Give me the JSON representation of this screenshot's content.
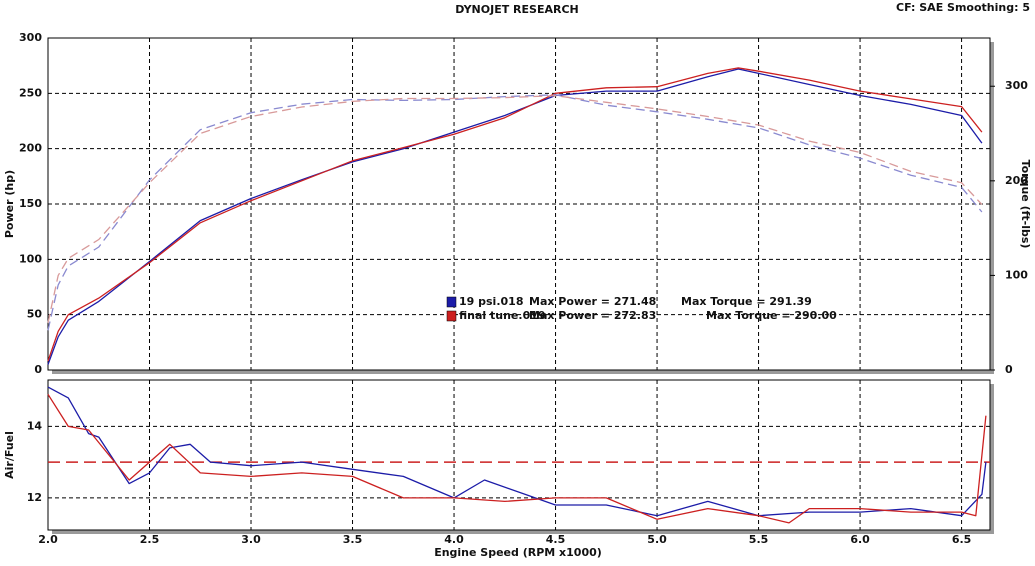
{
  "chart_data": [
    {
      "type": "line",
      "title": "DYNOJET RESEARCH",
      "subtitle": "CF: SAE  Smoothing: 5",
      "ylabel": "Power (hp)",
      "y2label": "Torque (ft-lbs)",
      "xlim": [
        2.0,
        6.64
      ],
      "xticks": [
        2,
        2.5,
        3,
        3.5,
        4,
        4.5,
        5,
        5.5,
        6,
        6.5
      ],
      "ylim": [
        0,
        300
      ],
      "yticks": [
        0,
        50,
        100,
        150,
        200,
        250,
        300
      ],
      "y2lim": [
        0,
        351
      ],
      "y2ticks": [
        0,
        100,
        200,
        300
      ],
      "grid": true,
      "series": [
        {
          "name": "19 psi.018",
          "max_power": "Max Power = 271.48",
          "max_torque": "Max Torque = 291.39",
          "color": "#1c1ca8",
          "linestyle": "solid",
          "x": [
            2.0,
            2.05,
            2.1,
            2.25,
            2.5,
            2.75,
            3.0,
            3.25,
            3.5,
            3.75,
            4.0,
            4.25,
            4.5,
            4.75,
            5.0,
            5.25,
            5.4,
            5.5,
            5.75,
            6.0,
            6.25,
            6.5,
            6.6
          ],
          "values": [
            5,
            30,
            45,
            62,
            98,
            135,
            155,
            172,
            188,
            200,
            215,
            230,
            248,
            252,
            252,
            265,
            272,
            268,
            258,
            248,
            240,
            230,
            205
          ]
        },
        {
          "name": "final tune.019",
          "max_power": "Max Power = 272.83",
          "max_torque": "Max Torque = 290.00",
          "color": "#cc2020",
          "linestyle": "solid",
          "x": [
            2.0,
            2.05,
            2.1,
            2.25,
            2.5,
            2.75,
            3.0,
            3.25,
            3.5,
            3.75,
            4.0,
            4.25,
            4.5,
            4.75,
            5.0,
            5.25,
            5.4,
            5.5,
            5.75,
            6.0,
            6.25,
            6.5,
            6.6
          ],
          "values": [
            8,
            35,
            50,
            65,
            97,
            133,
            153,
            171,
            189,
            201,
            213,
            228,
            250,
            255,
            256,
            268,
            273,
            270,
            262,
            252,
            245,
            238,
            215
          ]
        },
        {
          "color": "#8a8ad0",
          "linestyle": "dashed",
          "axis": "y2",
          "x": [
            2.0,
            2.05,
            2.1,
            2.25,
            2.5,
            2.75,
            3.0,
            3.25,
            3.5,
            3.75,
            4.0,
            4.25,
            4.5,
            4.75,
            5.0,
            5.25,
            5.5,
            5.75,
            6.0,
            6.25,
            6.5,
            6.6
          ],
          "values": [
            42,
            90,
            110,
            130,
            201,
            254,
            272,
            281,
            286,
            285,
            286,
            289,
            291,
            280,
            273,
            265,
            256,
            238,
            224,
            206,
            193,
            167
          ]
        },
        {
          "color": "#d89a9a",
          "linestyle": "dashed",
          "axis": "y2",
          "x": [
            2.0,
            2.05,
            2.1,
            2.25,
            2.5,
            2.75,
            3.0,
            3.25,
            3.5,
            3.75,
            4.0,
            4.25,
            4.5,
            4.75,
            5.0,
            5.25,
            5.5,
            5.75,
            6.0,
            6.25,
            6.5,
            6.6
          ],
          "values": [
            50,
            100,
            118,
            138,
            198,
            250,
            268,
            278,
            284,
            287,
            287,
            288,
            290,
            283,
            276,
            268,
            259,
            242,
            230,
            210,
            198,
            175
          ]
        }
      ]
    },
    {
      "type": "line",
      "xlabel": "Engine Speed (RPM x1000)",
      "ylabel": "Air/Fuel",
      "xlim": [
        2.0,
        6.64
      ],
      "xticks": [
        {
          "value": 2,
          "label": "2.0"
        },
        {
          "value": 2.5,
          "label": "2.5"
        },
        {
          "value": 3,
          "label": "3.0"
        },
        {
          "value": 3.5,
          "label": "3.5"
        },
        {
          "value": 4,
          "label": "4.0"
        },
        {
          "value": 4.5,
          "label": "4.5"
        },
        {
          "value": 5,
          "label": "5.0"
        },
        {
          "value": 5.5,
          "label": "5.5"
        },
        {
          "value": 6,
          "label": "6.0"
        },
        {
          "value": 6.5,
          "label": "6.5"
        }
      ],
      "ylim": [
        11.1,
        15.3
      ],
      "yticks": [
        12,
        14
      ],
      "grid": true,
      "reference_line": {
        "value": 13,
        "color": "#cc2020"
      },
      "series": [
        {
          "color": "#1c1ca8",
          "x": [
            2.0,
            2.1,
            2.2,
            2.25,
            2.4,
            2.5,
            2.6,
            2.7,
            2.8,
            3.0,
            3.25,
            3.5,
            3.75,
            4.0,
            4.15,
            4.5,
            4.75,
            5.0,
            5.25,
            5.5,
            5.75,
            6.0,
            6.25,
            6.5,
            6.6,
            6.62
          ],
          "values": [
            15.1,
            14.8,
            13.8,
            13.7,
            12.4,
            12.7,
            13.4,
            13.5,
            13.0,
            12.9,
            13.0,
            12.8,
            12.6,
            12.0,
            12.5,
            11.8,
            11.8,
            11.5,
            11.9,
            11.5,
            11.6,
            11.6,
            11.7,
            11.5,
            12.1,
            13.0
          ]
        },
        {
          "color": "#cc2020",
          "x": [
            2.0,
            2.1,
            2.2,
            2.4,
            2.6,
            2.75,
            3.0,
            3.25,
            3.5,
            3.75,
            4.0,
            4.25,
            4.5,
            4.75,
            5.0,
            5.25,
            5.5,
            5.65,
            5.75,
            6.0,
            6.25,
            6.5,
            6.57,
            6.62
          ],
          "values": [
            14.9,
            14.0,
            13.9,
            12.5,
            13.5,
            12.7,
            12.6,
            12.7,
            12.6,
            12.0,
            12.0,
            11.9,
            12.0,
            12.0,
            11.4,
            11.7,
            11.5,
            11.3,
            11.7,
            11.7,
            11.6,
            11.6,
            11.5,
            14.3
          ]
        }
      ]
    }
  ]
}
